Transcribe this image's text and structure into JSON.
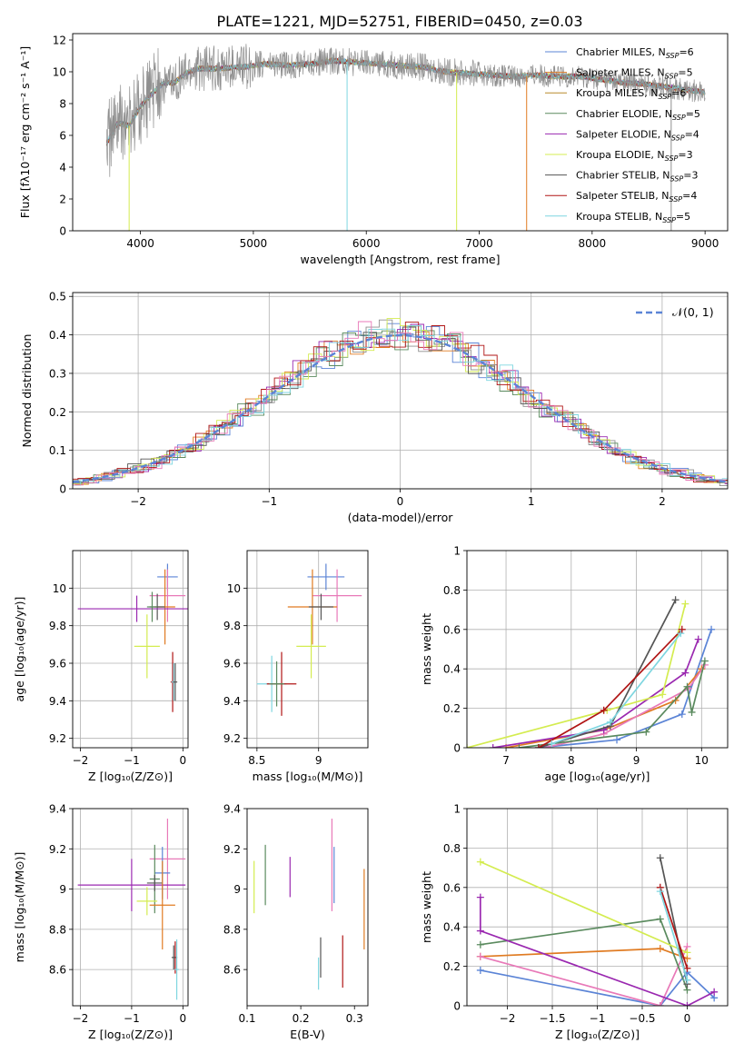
{
  "figure_title": "PLATE=1221, MJD=52751, FIBERID=0450, z=0.03",
  "palette": [
    "#5b84d6",
    "#e07b22",
    "#8f8f8f",
    "#5a8a5e",
    "#9a28b0",
    "#d4ec50",
    "#555555",
    "#b01515",
    "#7fd6e0",
    "#e879b8"
  ],
  "chart_data": [
    {
      "id": "spectrum",
      "type": "line",
      "xlabel": "wavelength [Angstrom, rest frame]",
      "ylabel": "Flux [fλ10⁻¹⁷ erg cm⁻² s⁻¹ A⁻¹]",
      "xlim": [
        3400,
        9200
      ],
      "ylim": [
        0,
        12.4
      ],
      "xticks": [
        4000,
        5000,
        6000,
        7000,
        8000,
        9000
      ],
      "yticks": [
        0,
        2,
        4,
        6,
        8,
        10,
        12
      ],
      "grid": false,
      "legend": "top-right",
      "data_series": {
        "name": "",
        "color": "#8f8f8f",
        "x": [
          3700,
          3800,
          3900,
          4000,
          4100,
          4200,
          4300,
          4400,
          4500,
          4700,
          4900,
          5100,
          5300,
          5500,
          5700,
          5900,
          6100,
          6300,
          6500,
          6700,
          6900,
          7100,
          7300,
          7500,
          7700,
          7900,
          8100,
          8300,
          8500,
          8700,
          8900,
          9000
        ],
        "y": [
          5.5,
          6.8,
          6.6,
          7.8,
          8.6,
          9.3,
          9.3,
          9.9,
          10.2,
          10.2,
          10.3,
          10.5,
          10.4,
          10.5,
          10.7,
          10.6,
          10.5,
          10.4,
          10.3,
          10.0,
          9.9,
          9.8,
          9.7,
          9.8,
          9.7,
          9.7,
          9.5,
          9.3,
          9.2,
          9.0,
          8.8,
          8.7
        ]
      },
      "series": [
        {
          "name": "Chabrier MILES, N",
          "sub": "SSP",
          "suffix": "=6",
          "color": "#5b84d6"
        },
        {
          "name": "Salpeter MILES, N",
          "sub": "SSP",
          "suffix": "=5",
          "color": "#e07b22"
        },
        {
          "name": "Kroupa MILES, N",
          "sub": "SSP",
          "suffix": "=6",
          "color": "#b88a2c"
        },
        {
          "name": "Chabrier ELODIE, N",
          "sub": "SSP",
          "suffix": "=5",
          "color": "#5a8a5e"
        },
        {
          "name": "Salpeter ELODIE, N",
          "sub": "SSP",
          "suffix": "=4",
          "color": "#9a28b0"
        },
        {
          "name": "Kroupa ELODIE, N",
          "sub": "SSP",
          "suffix": "=3",
          "color": "#d4ec50"
        },
        {
          "name": "Chabrier STELIB, N",
          "sub": "SSP",
          "suffix": "=3",
          "color": "#555555"
        },
        {
          "name": "Salpeter STELIB, N",
          "sub": "SSP",
          "suffix": "=4",
          "color": "#b01515"
        },
        {
          "name": "Kroupa STELIB, N",
          "sub": "SSP",
          "suffix": "=5",
          "color": "#7fd6e0"
        }
      ]
    },
    {
      "id": "residuals",
      "type": "histogram",
      "xlabel": "(data-model)/error",
      "ylabel": "Normed distribution",
      "xlim": [
        -2.5,
        2.5
      ],
      "ylim": [
        0,
        0.51
      ],
      "xticks": [
        -2,
        -1,
        0,
        1,
        2
      ],
      "yticks": [
        0.0,
        0.1,
        0.2,
        0.3,
        0.4,
        0.5
      ],
      "grid": true,
      "legend": "top-right",
      "reference_curve": {
        "name": "𝒩(0, 1)",
        "color": "#5b84d6",
        "dashed": true
      }
    },
    {
      "id": "age_vs_Z",
      "type": "errorbar",
      "xlabel": "Z [log₁₀(Z/Z⊙)]",
      "ylabel": "age  [log₁₀(age/yr)]",
      "xlim": [
        -2.15,
        0.1
      ],
      "ylim": [
        9.15,
        10.2
      ],
      "xticks": [
        -2,
        -1,
        0
      ],
      "yticks": [
        9.2,
        9.4,
        9.6,
        9.8,
        10.0
      ],
      "grid": true,
      "points": [
        {
          "color": "#5b84d6",
          "x": -0.3,
          "y": 10.06,
          "xerr": 0.2,
          "yerr": 0.07
        },
        {
          "color": "#e879b8",
          "x": -0.3,
          "y": 9.96,
          "xerr": 0.35,
          "yerr": 0.14
        },
        {
          "color": "#e07b22",
          "x": -0.35,
          "y": 9.9,
          "xerr": 0.2,
          "yerr": 0.2
        },
        {
          "color": "#555555",
          "x": -0.5,
          "y": 9.9,
          "xerr": 0.15,
          "yerr": 0.07
        },
        {
          "color": "#9a28b0",
          "x": -0.9,
          "y": 9.89,
          "xerr": 1.15,
          "yerr": 0.07
        },
        {
          "color": "#5a8a5e",
          "x": -0.6,
          "y": 9.9,
          "xerr": 0.1,
          "yerr": 0.08
        },
        {
          "color": "#d4ec50",
          "x": -0.7,
          "y": 9.69,
          "xerr": 0.25,
          "yerr": 0.17
        },
        {
          "color": "#b01515",
          "x": -0.2,
          "y": 9.5,
          "xerr": 0.04,
          "yerr": 0.16
        },
        {
          "color": "#7fd6e0",
          "x": -0.18,
          "y": 9.5,
          "xerr": 0.04,
          "yerr": 0.1
        },
        {
          "color": "#555555",
          "x": -0.15,
          "y": 9.5,
          "xerr": 0.04,
          "yerr": 0.1
        }
      ]
    },
    {
      "id": "age_vs_mass",
      "type": "errorbar",
      "xlabel": "mass [log₁₀(M/M⊙)]",
      "ylabel": "",
      "xlim": [
        8.42,
        9.4
      ],
      "ylim": [
        9.15,
        10.2
      ],
      "xticks": [
        8.5,
        9.0
      ],
      "yticks": [
        9.2,
        9.4,
        9.6,
        9.8,
        10.0
      ],
      "grid": true,
      "points": [
        {
          "color": "#5b84d6",
          "x": 9.06,
          "y": 10.06,
          "xerr": 0.15,
          "yerr": 0.07
        },
        {
          "color": "#e879b8",
          "x": 9.15,
          "y": 9.96,
          "xerr": 0.2,
          "yerr": 0.14
        },
        {
          "color": "#e07b22",
          "x": 8.95,
          "y": 9.9,
          "xerr": 0.2,
          "yerr": 0.2
        },
        {
          "color": "#555555",
          "x": 9.02,
          "y": 9.9,
          "xerr": 0.1,
          "yerr": 0.07
        },
        {
          "color": "#d4ec50",
          "x": 8.94,
          "y": 9.69,
          "xerr": 0.12,
          "yerr": 0.17
        },
        {
          "color": "#7fd6e0",
          "x": 8.62,
          "y": 9.49,
          "xerr": 0.12,
          "yerr": 0.15
        },
        {
          "color": "#b01515",
          "x": 8.7,
          "y": 9.49,
          "xerr": 0.12,
          "yerr": 0.17
        },
        {
          "color": "#5a8a5e",
          "x": 8.66,
          "y": 9.49,
          "xerr": 0.06,
          "yerr": 0.12
        }
      ]
    },
    {
      "id": "weight_vs_age",
      "type": "line",
      "xlabel": "age  [log₁₀(age/yr)]",
      "ylabel": "mass weight",
      "xlim": [
        6.4,
        10.4
      ],
      "ylim": [
        0,
        1.0
      ],
      "xticks": [
        7,
        8,
        9,
        10
      ],
      "yticks": [
        0.0,
        0.2,
        0.4,
        0.6,
        0.8,
        1.0
      ],
      "grid": true,
      "series": [
        {
          "color": "#5b84d6",
          "x": [
            7.5,
            8.7,
            9.7,
            10.15
          ],
          "y": [
            0.0,
            0.04,
            0.17,
            0.6
          ]
        },
        {
          "color": "#e07b22",
          "x": [
            7.0,
            8.5,
            9.6,
            10.0
          ],
          "y": [
            0.0,
            0.09,
            0.24,
            0.4
          ]
        },
        {
          "color": "#e879b8",
          "x": [
            7.6,
            8.5,
            9.8,
            10.05
          ],
          "y": [
            0.0,
            0.07,
            0.3,
            0.42
          ]
        },
        {
          "color": "#5a8a5e",
          "x": [
            7.2,
            9.15,
            9.78,
            9.85,
            10.05
          ],
          "y": [
            0.0,
            0.08,
            0.31,
            0.18,
            0.44
          ]
        },
        {
          "color": "#9a28b0",
          "x": [
            6.8,
            8.5,
            9.75,
            9.95
          ],
          "y": [
            0.0,
            0.09,
            0.38,
            0.55
          ]
        },
        {
          "color": "#d4ec50",
          "x": [
            6.4,
            8.55,
            9.4,
            9.75
          ],
          "y": [
            0.0,
            0.19,
            0.27,
            0.73
          ]
        },
        {
          "color": "#555555",
          "x": [
            7.5,
            8.6,
            9.6
          ],
          "y": [
            0.0,
            0.11,
            0.75
          ]
        },
        {
          "color": "#b01515",
          "x": [
            7.5,
            8.5,
            9.7
          ],
          "y": [
            0.0,
            0.19,
            0.6
          ]
        },
        {
          "color": "#7fd6e0",
          "x": [
            7.7,
            8.6,
            9.68
          ],
          "y": [
            0.02,
            0.13,
            0.58
          ]
        }
      ]
    },
    {
      "id": "mass_vs_Z",
      "type": "errorbar",
      "xlabel": "Z [log₁₀(Z/Z⊙)]",
      "ylabel": "mass [log₁₀(M/M⊙)]",
      "xlim": [
        -2.15,
        0.1
      ],
      "ylim": [
        8.42,
        9.4
      ],
      "xticks": [
        -2,
        -1,
        0
      ],
      "yticks": [
        8.6,
        8.8,
        9.0,
        9.2,
        9.4
      ],
      "grid": true,
      "points": [
        {
          "color": "#e879b8",
          "x": -0.3,
          "y": 9.15,
          "xerr": 0.35,
          "yerr": 0.2
        },
        {
          "color": "#5b84d6",
          "x": -0.4,
          "y": 9.08,
          "xerr": 0.15,
          "yerr": 0.13
        },
        {
          "color": "#5a8a5e",
          "x": -0.55,
          "y": 9.05,
          "xerr": 0.1,
          "yerr": 0.17
        },
        {
          "color": "#9a28b0",
          "x": -1.0,
          "y": 9.02,
          "xerr": 1.05,
          "yerr": 0.13
        },
        {
          "color": "#555555",
          "x": -0.55,
          "y": 9.03,
          "xerr": 0.15,
          "yerr": 0.04
        },
        {
          "color": "#d4ec50",
          "x": -0.7,
          "y": 8.94,
          "xerr": 0.2,
          "yerr": 0.07
        },
        {
          "color": "#e07b22",
          "x": -0.4,
          "y": 8.92,
          "xerr": 0.25,
          "yerr": 0.22
        },
        {
          "color": "#b01515",
          "x": -0.15,
          "y": 8.66,
          "xerr": 0.04,
          "yerr": 0.08
        },
        {
          "color": "#555555",
          "x": -0.18,
          "y": 8.66,
          "xerr": 0.04,
          "yerr": 0.06
        },
        {
          "color": "#7fd6e0",
          "x": -0.12,
          "y": 8.6,
          "xerr": 0.04,
          "yerr": 0.15
        }
      ]
    },
    {
      "id": "mass_vs_EBV",
      "type": "errorbar",
      "xlabel": "E(B-V)",
      "ylabel": "",
      "xlim": [
        0.1,
        0.325
      ],
      "ylim": [
        8.42,
        9.4
      ],
      "xticks": [
        0.1,
        0.2,
        0.3
      ],
      "yticks": [
        8.6,
        8.8,
        9.0,
        9.2,
        9.4
      ],
      "grid": false,
      "points": [
        {
          "color": "#d4ec50",
          "x": 0.113,
          "y": 9.01,
          "xerr": 0,
          "yerr": 0.13
        },
        {
          "color": "#5a8a5e",
          "x": 0.134,
          "y": 9.07,
          "xerr": 0,
          "yerr": 0.15
        },
        {
          "color": "#9a28b0",
          "x": 0.18,
          "y": 9.06,
          "xerr": 0,
          "yerr": 0.1
        },
        {
          "color": "#e879b8",
          "x": 0.258,
          "y": 9.12,
          "xerr": 0,
          "yerr": 0.23
        },
        {
          "color": "#5b84d6",
          "x": 0.262,
          "y": 9.07,
          "xerr": 0,
          "yerr": 0.14
        },
        {
          "color": "#e07b22",
          "x": 0.318,
          "y": 8.9,
          "xerr": 0,
          "yerr": 0.2
        },
        {
          "color": "#555555",
          "x": 0.237,
          "y": 8.66,
          "xerr": 0,
          "yerr": 0.1
        },
        {
          "color": "#7fd6e0",
          "x": 0.233,
          "y": 8.58,
          "xerr": 0,
          "yerr": 0.08
        },
        {
          "color": "#b01515",
          "x": 0.278,
          "y": 8.64,
          "xerr": 0,
          "yerr": 0.13
        }
      ]
    },
    {
      "id": "weight_vs_Z",
      "type": "line",
      "xlabel": "Z [log₁₀(Z/Z⊙)]",
      "ylabel": "mass weight",
      "xlim": [
        -2.45,
        0.45
      ],
      "ylim": [
        0,
        1.0
      ],
      "xticks": [
        -2.0,
        -1.5,
        -1.0,
        -0.5,
        0.0
      ],
      "yticks": [
        0.0,
        0.2,
        0.4,
        0.6,
        0.8,
        1.0
      ],
      "grid": true,
      "series": [
        {
          "color": "#5b84d6",
          "x": [
            -2.3,
            -0.3,
            0.0,
            0.3
          ],
          "y": [
            0.18,
            0.0,
            0.17,
            0.04
          ]
        },
        {
          "color": "#e07b22",
          "x": [
            -2.3,
            -0.3,
            0.0
          ],
          "y": [
            0.25,
            0.29,
            0.24
          ]
        },
        {
          "color": "#e879b8",
          "x": [
            -2.3,
            -0.3,
            0.0
          ],
          "y": [
            0.25,
            0.0,
            0.3
          ]
        },
        {
          "color": "#5a8a5e",
          "x": [
            -2.3,
            -0.3,
            0.0
          ],
          "y": [
            0.31,
            0.44,
            0.08
          ]
        },
        {
          "color": "#9a28b0",
          "x": [
            -2.3,
            -2.3,
            0.0,
            0.3
          ],
          "y": [
            0.55,
            0.38,
            0.0,
            0.07
          ]
        },
        {
          "color": "#d4ec50",
          "x": [
            -2.3,
            0.0
          ],
          "y": [
            0.73,
            0.27
          ]
        },
        {
          "color": "#555555",
          "x": [
            -0.3,
            0.0
          ],
          "y": [
            0.75,
            0.11
          ]
        },
        {
          "color": "#b01515",
          "x": [
            -0.3,
            0.0
          ],
          "y": [
            0.6,
            0.19
          ]
        },
        {
          "color": "#7fd6e0",
          "x": [
            -0.3,
            0.0
          ],
          "y": [
            0.58,
            0.13
          ]
        }
      ]
    }
  ]
}
